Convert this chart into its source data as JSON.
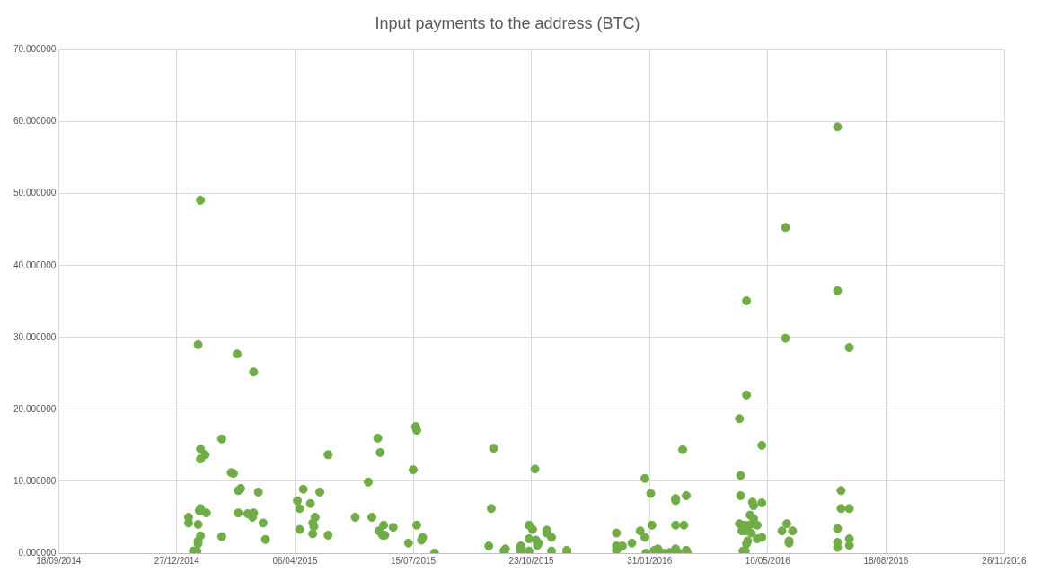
{
  "chart_data": {
    "type": "scatter",
    "title": "Input payments to the address (BTC)",
    "color": "#70ad47",
    "marker": "circle",
    "grid": true,
    "legend": false,
    "xlim": [
      "2014-09-18",
      "2016-11-26"
    ],
    "xticks": [
      {
        "value": "2014-09-18",
        "label": "18/09/2014"
      },
      {
        "value": "2014-12-27",
        "label": "27/12/2014"
      },
      {
        "value": "2015-04-06",
        "label": "06/04/2015"
      },
      {
        "value": "2015-07-15",
        "label": "15/07/2015"
      },
      {
        "value": "2015-10-23",
        "label": "23/10/2015"
      },
      {
        "value": "2016-01-31",
        "label": "31/01/2016"
      },
      {
        "value": "2016-05-10",
        "label": "10/05/2016"
      },
      {
        "value": "2016-08-18",
        "label": "18/08/2016"
      },
      {
        "value": "2016-11-26",
        "label": "26/11/2016"
      }
    ],
    "ylim": [
      0,
      70
    ],
    "yticks": [
      {
        "value": 0,
        "label": "0.000000"
      },
      {
        "value": 10,
        "label": "10.000000"
      },
      {
        "value": 20,
        "label": "20.000000"
      },
      {
        "value": 30,
        "label": "30.000000"
      },
      {
        "value": 40,
        "label": "40.000000"
      },
      {
        "value": 50,
        "label": "50.000000"
      },
      {
        "value": 60,
        "label": "60.000000"
      },
      {
        "value": 70,
        "label": "70.000000"
      }
    ],
    "x": [
      "2015-01-06",
      "2015-01-06",
      "2015-01-10",
      "2015-01-13",
      "2015-01-14",
      "2015-01-14",
      "2015-01-15",
      "2015-01-16",
      "2015-01-16",
      "2015-01-14",
      "2015-01-16",
      "2015-01-16",
      "2015-01-20",
      "2015-01-21",
      "2015-01-16",
      "2015-01-14",
      "2015-02-03",
      "2015-02-03",
      "2015-02-11",
      "2015-02-13",
      "2015-02-17",
      "2015-02-19",
      "2015-02-17",
      "2015-02-16",
      "2015-02-25",
      "2015-03-01",
      "2015-03-02",
      "2015-03-02",
      "2015-03-06",
      "2015-03-10",
      "2015-03-12",
      "2015-04-08",
      "2015-04-10",
      "2015-04-10",
      "2015-04-13",
      "2015-04-19",
      "2015-04-21",
      "2015-04-21",
      "2015-04-22",
      "2015-04-23",
      "2015-04-27",
      "2015-05-04",
      "2015-05-04",
      "2015-05-27",
      "2015-06-07",
      "2015-06-10",
      "2015-06-15",
      "2015-06-16",
      "2015-06-17",
      "2015-06-19",
      "2015-06-20",
      "2015-06-21",
      "2015-06-28",
      "2015-07-11",
      "2015-07-15",
      "2015-07-17",
      "2015-07-18",
      "2015-07-18",
      "2015-07-22",
      "2015-07-23",
      "2015-08-02",
      "2015-09-17",
      "2015-09-19",
      "2015-09-21",
      "2015-09-30",
      "2015-09-30",
      "2015-10-01",
      "2015-10-14",
      "2015-10-14",
      "2015-10-14",
      "2015-10-21",
      "2015-10-21",
      "2015-10-21",
      "2015-10-24",
      "2015-10-26",
      "2015-10-27",
      "2015-10-28",
      "2015-10-29",
      "2015-11-05",
      "2015-11-05",
      "2015-11-09",
      "2015-11-09",
      "2015-11-22",
      "2015-11-22",
      "2016-01-03",
      "2016-01-03",
      "2016-01-03",
      "2016-01-05",
      "2016-01-08",
      "2016-01-16",
      "2016-01-23",
      "2016-01-27",
      "2016-01-27",
      "2016-01-28",
      "2016-02-01",
      "2016-02-02",
      "2016-02-04",
      "2016-02-07",
      "2016-02-12",
      "2016-02-17",
      "2016-02-22",
      "2016-02-22",
      "2016-02-22",
      "2016-02-22",
      "2016-02-24",
      "2016-02-28",
      "2016-02-29",
      "2016-03-02",
      "2016-03-02",
      "2016-03-03",
      "2016-04-16",
      "2016-04-17",
      "2016-04-17",
      "2016-04-16",
      "2016-04-18",
      "2016-04-19",
      "2016-04-25",
      "2016-04-27",
      "2016-04-28",
      "2016-04-28",
      "2016-04-26",
      "2016-05-01",
      "2016-05-01",
      "2016-04-28",
      "2016-04-22",
      "2016-04-22",
      "2016-04-20",
      "2016-04-24",
      "2016-04-21",
      "2016-04-22",
      "2016-04-23",
      "2016-04-21",
      "2016-05-05",
      "2016-05-05",
      "2016-05-05",
      "2016-05-25",
      "2016-05-25",
      "2016-05-22",
      "2016-05-26",
      "2016-05-28",
      "2016-05-28",
      "2016-05-31",
      "2016-07-08",
      "2016-07-08",
      "2016-07-08",
      "2016-07-08",
      "2016-07-08",
      "2016-07-11",
      "2016-07-11",
      "2016-07-18",
      "2016-07-18",
      "2016-07-18",
      "2016-07-18"
    ],
    "values": [
      5.0,
      4.2,
      0.3,
      0.3,
      1.7,
      4.0,
      5.9,
      6.2,
      49.1,
      29.0,
      14.5,
      13.1,
      13.7,
      5.6,
      2.4,
      1.3,
      15.9,
      2.3,
      11.2,
      11.1,
      8.7,
      9.0,
      5.6,
      27.7,
      5.5,
      5.0,
      5.6,
      25.2,
      8.5,
      4.2,
      1.9,
      7.3,
      6.2,
      3.3,
      8.9,
      6.9,
      4.2,
      2.7,
      3.7,
      5.0,
      8.5,
      13.7,
      2.5,
      5.0,
      9.9,
      5.0,
      16.0,
      3.1,
      14.0,
      2.5,
      3.9,
      2.5,
      3.6,
      1.4,
      11.6,
      17.6,
      17.1,
      3.9,
      1.8,
      2.2,
      0,
      1.0,
      6.2,
      14.6,
      0.4,
      0.1,
      0.6,
      0.8,
      1.0,
      0.3,
      3.9,
      2.0,
      0.3,
      3.3,
      11.7,
      1.8,
      1.1,
      1.4,
      3.2,
      2.8,
      2.2,
      0.3,
      0.4,
      0,
      2.8,
      1.0,
      0.4,
      0.8,
      1.0,
      1.4,
      3.1,
      2.2,
      10.4,
      0,
      8.3,
      3.9,
      0.4,
      0.6,
      0,
      0.1,
      7.6,
      7.3,
      3.9,
      0.6,
      0.1,
      14.4,
      3.9,
      8.0,
      0.4,
      0,
      18.7,
      10.8,
      8.0,
      4.1,
      3.1,
      0.3,
      5.3,
      7.1,
      6.6,
      4.8,
      2.8,
      3.9,
      2.0,
      4.1,
      35.1,
      22.0,
      3.9,
      3.9,
      3.1,
      1.3,
      1.7,
      0.3,
      15.0,
      7.0,
      2.2,
      45.3,
      29.9,
      3.1,
      4.1,
      1.4,
      1.7,
      3.1,
      59.3,
      36.5,
      3.4,
      1.5,
      0.8,
      8.7,
      6.2,
      28.6,
      6.2,
      2.0,
      1.1
    ]
  }
}
